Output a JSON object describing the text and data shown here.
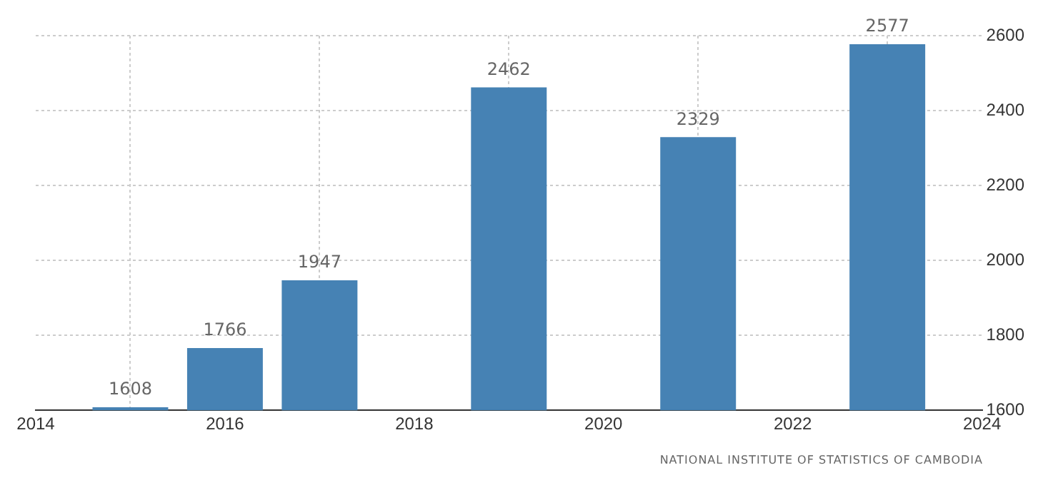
{
  "chart_data": {
    "type": "bar",
    "x": [
      2015,
      2016,
      2017,
      2019,
      2021,
      2023
    ],
    "series": [
      {
        "color": "#4682b4",
        "values": [
          1608,
          1766,
          1947,
          2462,
          2329,
          2577
        ]
      }
    ],
    "xlim": [
      2014,
      2024
    ],
    "xticks": [
      2014,
      2016,
      2018,
      2020,
      2022,
      2024
    ],
    "ylim": [
      1600,
      2600
    ],
    "yticks": [
      1600,
      1800,
      2000,
      2200,
      2400,
      2600
    ],
    "grid": true,
    "data_labels": true,
    "legend": false,
    "annotations": [
      "NATIONAL INSTITUTE OF STATISTICS OF CAMBODIA"
    ]
  }
}
